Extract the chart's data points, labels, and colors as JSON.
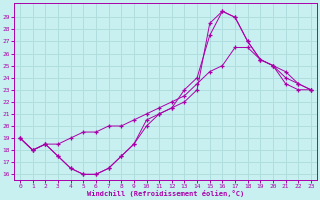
{
  "xlabel": "Windchill (Refroidissement éolien,°C)",
  "bg_color": "#c8f0f0",
  "grid_color": "#b0dede",
  "line_color": "#aa00aa",
  "x_values": [
    0,
    1,
    2,
    3,
    4,
    5,
    6,
    7,
    8,
    9,
    10,
    11,
    12,
    13,
    14,
    15,
    16,
    17,
    18,
    19,
    20,
    21,
    22,
    23
  ],
  "ylim": [
    15.5,
    30.2
  ],
  "xlim": [
    -0.5,
    23.5
  ],
  "yticks": [
    16,
    17,
    18,
    19,
    20,
    21,
    22,
    23,
    24,
    25,
    26,
    27,
    28,
    29
  ],
  "line1": [
    19.0,
    18.0,
    18.5,
    17.5,
    16.5,
    16.0,
    16.0,
    16.5,
    17.5,
    18.5,
    20.5,
    21.0,
    21.5,
    23.0,
    24.0,
    27.5,
    29.5,
    29.0,
    27.0,
    25.5,
    25.0,
    24.5,
    23.5,
    23.0
  ],
  "line2": [
    19.0,
    18.0,
    18.5,
    17.5,
    16.5,
    16.0,
    16.0,
    16.5,
    17.5,
    18.5,
    20.0,
    21.0,
    21.5,
    22.0,
    23.0,
    28.5,
    29.5,
    29.0,
    27.0,
    25.5,
    25.0,
    23.5,
    23.0,
    23.0
  ],
  "line3": [
    19.0,
    18.0,
    18.5,
    18.5,
    19.0,
    19.5,
    19.5,
    20.0,
    20.0,
    20.5,
    21.0,
    21.5,
    22.0,
    22.5,
    23.5,
    24.5,
    25.0,
    26.5,
    26.5,
    25.5,
    25.0,
    24.0,
    23.5,
    23.0
  ]
}
